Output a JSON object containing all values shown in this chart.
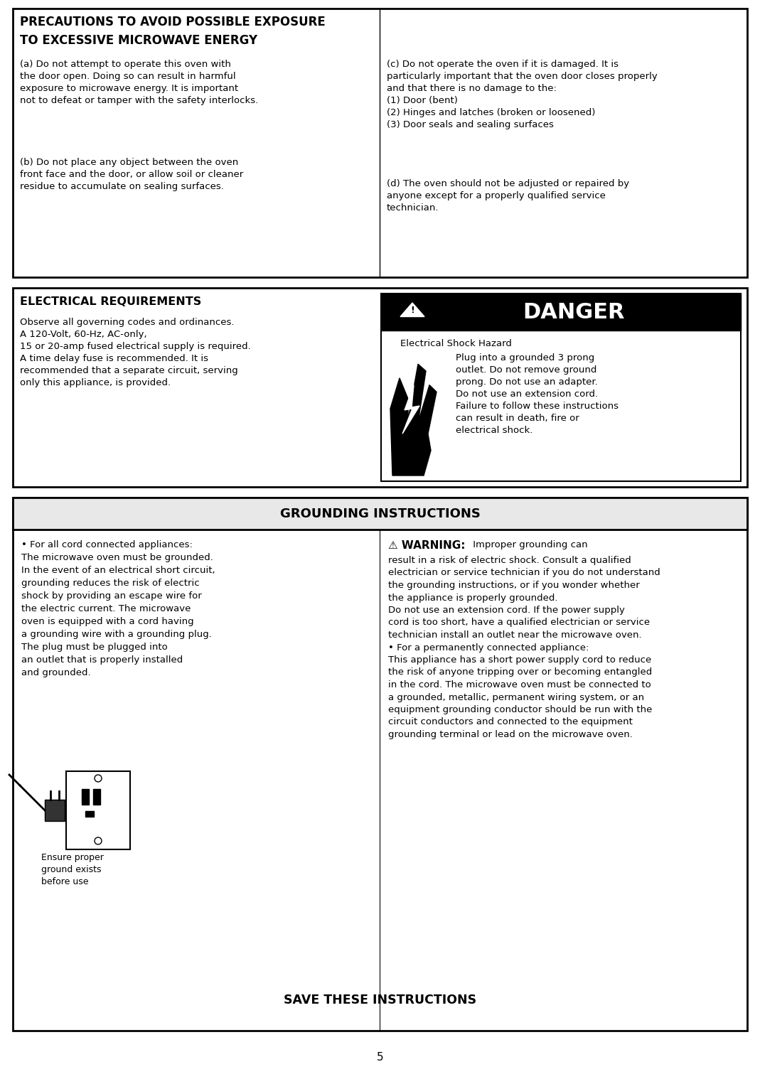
{
  "figsize": [
    10.69,
    15.18
  ],
  "dpi": 100,
  "bg": "#ffffff",
  "s1_title1": "PRECAUTIONS TO AVOID POSSIBLE EXPOSURE",
  "s1_title2": "TO EXCESSIVE MICROWAVE ENERGY",
  "s1_left1": "(a) Do not attempt to operate this oven with\nthe door open. Doing so can result in harmful\nexposure to microwave energy. It is important\nnot to defeat or tamper with the safety interlocks.",
  "s1_left2": "(b) Do not place any object between the oven\nfront face and the door, or allow soil or cleaner\nresidue to accumulate on sealing surfaces.",
  "s1_right1": "(c) Do not operate the oven if it is damaged. It is\nparticularly important that the oven door closes properly\nand that there is no damage to the:\n(1) Door (bent)\n(2) Hinges and latches (broken or loosened)\n(3) Door seals and sealing surfaces",
  "s1_right2": "(d) The oven should not be adjusted or repaired by\nanyone except for a properly qualified service\ntechnician.",
  "s2_title": "ELECTRICAL REQUIREMENTS",
  "s2_body": "Observe all governing codes and ordinances.\nA 120-Volt, 60-Hz, AC-only,\n15 or 20-amp fused electrical supply is required.\nA time delay fuse is recommended. It is\nrecommended that a separate circuit, serving\nonly this appliance, is provided.",
  "danger_word": "DANGER",
  "danger_sub": "Electrical Shock Hazard",
  "danger_body": "Plug into a grounded 3 prong\noutlet. Do not remove ground\nprong. Do not use an adapter.\nDo not use an extension cord.\nFailure to follow these instructions\ncan result in death, fire or\nelectrical shock.",
  "s3_title": "GROUNDING INSTRUCTIONS",
  "s3_left": "• For all cord connected appliances:\nThe microwave oven must be grounded.\nIn the event of an electrical short circuit,\ngrounding reduces the risk of electric\nshock by providing an escape wire for\nthe electric current. The microwave\noven is equipped with a cord having\na grounding wire with a grounding plug.\nThe plug must be plugged into\nan outlet that is properly installed\nand grounded.",
  "s3_img_cap": "Ensure proper\nground exists\nbefore use",
  "s3_warn_line1_bold": "⚠ WARNING:",
  "s3_warn_line1_rest": " Improper grounding can",
  "s3_right_body": "result in a risk of electric shock. Consult a qualified\nelectrician or service technician if you do not understand\nthe grounding instructions, or if you wonder whether\nthe appliance is properly grounded.\nDo not use an extension cord. If the power supply\ncord is too short, have a qualified electrician or service\ntechnician install an outlet near the microwave oven.\n• For a permanently connected appliance:\nThis appliance has a short power supply cord to reduce\nthe risk of anyone tripping over or becoming entangled\nin the cord. The microwave oven must be connected to\na grounded, metallic, permanent wiring system, or an\nequipment grounding conductor should be run with the\ncircuit conductors and connected to the equipment\ngrounding terminal or lead on the microwave oven.",
  "save_text": "SAVE THESE INSTRUCTIONS",
  "page_num": "5"
}
